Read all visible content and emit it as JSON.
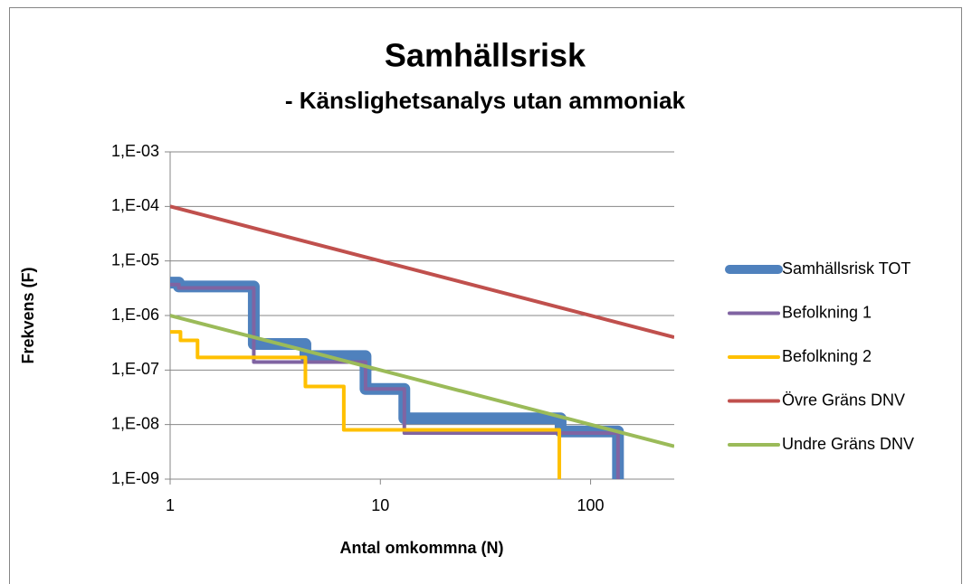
{
  "chart_data": {
    "type": "line",
    "title": "Samhällsrisk",
    "subtitle": "- Känslighetsanalys utan ammoniak",
    "xlabel": "Antal omkommna (N)",
    "ylabel": "Frekvens (F)",
    "xscale": "log",
    "yscale": "log",
    "xlim": [
      1,
      250
    ],
    "xticks": [
      1,
      10,
      100
    ],
    "ylim": [
      1e-09,
      0.001
    ],
    "yticks": [
      {
        "value": 1e-09,
        "label": "1,E-09"
      },
      {
        "value": 1e-08,
        "label": "1,E-08"
      },
      {
        "value": 1e-07,
        "label": "1,E-07"
      },
      {
        "value": 1e-06,
        "label": "1,E-06"
      },
      {
        "value": 1e-05,
        "label": "1,E-05"
      },
      {
        "value": 0.0001,
        "label": "1,E-04"
      },
      {
        "value": 0.001,
        "label": "1,E-03"
      }
    ],
    "grid": true,
    "legend": "right",
    "series": [
      {
        "name": "Samhällsrisk TOT",
        "color": "#4f81bd",
        "x": [
          1,
          1.1,
          1.1,
          2.5,
          2.5,
          4.4,
          4.4,
          8.5,
          8.5,
          13,
          13,
          72,
          72,
          135,
          135
        ],
        "values": [
          4e-06,
          4e-06,
          3.4e-06,
          3.4e-06,
          3e-07,
          3e-07,
          1.8e-07,
          1.8e-07,
          4.5e-08,
          4.5e-08,
          1.3e-08,
          1.3e-08,
          7.5e-09,
          7.5e-09,
          1e-09
        ]
      },
      {
        "name": "Befolkning 1",
        "color": "#8064a2",
        "x": [
          1,
          1.1,
          1.1,
          2.5,
          2.5,
          8.5,
          8.5,
          13,
          13,
          135,
          135
        ],
        "values": [
          3.7e-06,
          3.7e-06,
          3.2e-06,
          3.2e-06,
          1.4e-07,
          1.4e-07,
          4.5e-08,
          4.5e-08,
          7e-09,
          7e-09,
          1e-09
        ]
      },
      {
        "name": "Befolkning 2",
        "color": "#ffc000",
        "x": [
          1,
          1.12,
          1.12,
          1.35,
          1.35,
          4.4,
          4.4,
          6.7,
          6.7,
          71,
          71
        ],
        "values": [
          5e-07,
          5e-07,
          3.5e-07,
          3.5e-07,
          1.7e-07,
          1.7e-07,
          5e-08,
          5e-08,
          8e-09,
          8e-09,
          1e-09
        ]
      },
      {
        "name": "Övre Gräns DNV",
        "color": "#c0504d",
        "x": [
          1,
          250
        ],
        "values": [
          0.0001,
          4e-07
        ]
      },
      {
        "name": "Undre Gräns DNV",
        "color": "#9bbb59",
        "x": [
          1,
          250
        ],
        "values": [
          1e-06,
          4e-09
        ]
      }
    ]
  }
}
